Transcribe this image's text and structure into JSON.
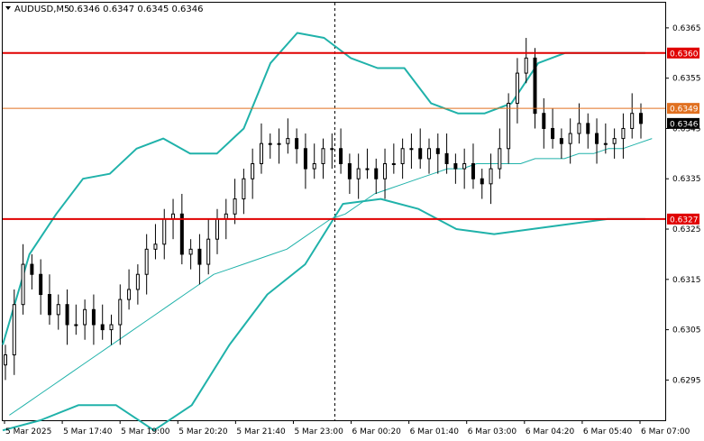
{
  "header": {
    "arrow_icon": "triangle-down-icon",
    "symbol": "AUDUSD,M5",
    "ohlc": "0.6346 0.6347 0.6345 0.6346"
  },
  "colors": {
    "background": "#ffffff",
    "candle": "#000000",
    "bollinger": "#20b2aa",
    "moving_average": "#20b2aa",
    "level_red": "#e00000",
    "level_orange": "#e07020",
    "current_price_label": "#000000"
  },
  "chart_data": {
    "type": "line",
    "title": "",
    "y_ticks": [
      "0.6365",
      "0.6355",
      "0.6345",
      "0.6335",
      "0.6325",
      "0.6315",
      "0.6305",
      "0.6295"
    ],
    "ylim": [
      0.6287,
      0.637
    ],
    "x_ticks": [
      "5 Mar 2025",
      "5 Mar 17:40",
      "5 Mar 19:00",
      "5 Mar 20:20",
      "5 Mar 21:40",
      "5 Mar 23:00",
      "6 Mar 00:20",
      "6 Mar 01:40",
      "6 Mar 03:00",
      "6 Mar 04:20",
      "6 Mar 05:40",
      "6 Mar 07:00"
    ],
    "grid": false,
    "horizontal_levels": [
      {
        "value": 0.636,
        "label": "0.6360",
        "color": "#e00000"
      },
      {
        "value": 0.6349,
        "label": "0.6349",
        "color": "#e07020"
      },
      {
        "value": 0.6327,
        "label": "0.6327",
        "color": "#e00000"
      }
    ],
    "current_price": {
      "value": 0.6346,
      "label": "0.6346"
    },
    "vertical_marker": {
      "at_tick": "5 Mar 23:00",
      "style": "dashed"
    },
    "series": [
      {
        "kind": "close",
        "values": [
          0.63,
          0.631,
          0.6318,
          0.6316,
          0.6312,
          0.6308,
          0.631,
          0.6306,
          0.6306,
          0.6309,
          0.6306,
          0.6305,
          0.6306,
          0.6311,
          0.6313,
          0.6316,
          0.6321,
          0.6322,
          0.6327,
          0.6328,
          0.632,
          0.6321,
          0.6318,
          0.6323,
          0.6327,
          0.6328,
          0.6331,
          0.6335,
          0.6338,
          0.6342,
          0.6342,
          0.6342,
          0.6343,
          0.6341,
          0.6337,
          0.6338,
          0.6341,
          0.6341,
          0.6338,
          0.6335,
          0.6337,
          0.6337,
          0.6335,
          0.6338,
          0.6338,
          0.6341,
          0.6341,
          0.6339,
          0.6341,
          0.634,
          0.6338,
          0.6337,
          0.6338,
          0.6335,
          0.6334,
          0.6337,
          0.6341,
          0.635,
          0.6356,
          0.6359,
          0.6348,
          0.6345,
          0.6343,
          0.6342,
          0.6344,
          0.6346,
          0.6344,
          0.6342,
          0.6342,
          0.6343,
          0.6345,
          0.6348,
          0.6346
        ]
      },
      {
        "kind": "moving_average",
        "values": [
          0.6288,
          0.629,
          0.6292,
          0.6294,
          0.6296,
          0.6298,
          0.63,
          0.6302,
          0.6304,
          0.6306,
          0.6308,
          0.631,
          0.6312,
          0.6314,
          0.6316,
          0.6317,
          0.6318,
          0.6319,
          0.632,
          0.6321,
          0.6323,
          0.6325,
          0.6327,
          0.6328,
          0.633,
          0.6332,
          0.6333,
          0.6334,
          0.6335,
          0.6336,
          0.6337,
          0.6337,
          0.6338,
          0.6338,
          0.6338,
          0.6338,
          0.6339,
          0.6339,
          0.6339,
          0.634,
          0.634,
          0.6341,
          0.6341,
          0.6342,
          0.6343
        ]
      },
      {
        "kind": "bollinger_upper",
        "values": [
          0.6302,
          0.632,
          0.6328,
          0.6335,
          0.6336,
          0.6341,
          0.6343,
          0.634,
          0.634,
          0.6345,
          0.6358,
          0.6364,
          0.6363,
          0.6359,
          0.6357,
          0.6357,
          0.635,
          0.6348,
          0.6348,
          0.635,
          0.6358,
          0.636,
          0.636,
          0.636,
          0.636
        ]
      },
      {
        "kind": "bollinger_lower",
        "values": [
          0.6285,
          0.6287,
          0.629,
          0.629,
          0.6285,
          0.629,
          0.6302,
          0.6312,
          0.6318,
          0.633,
          0.6331,
          0.6329,
          0.6325,
          0.6324,
          0.6325,
          0.6326,
          0.6327,
          0.6327
        ]
      }
    ]
  }
}
